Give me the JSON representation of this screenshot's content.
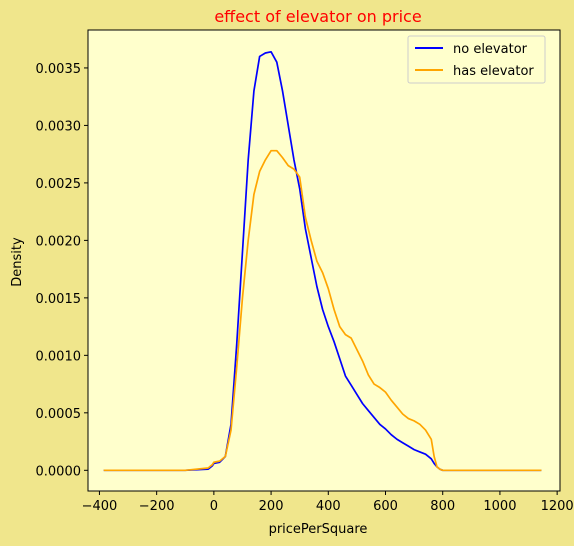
{
  "colors": {
    "figure_bg": "#f0e68c",
    "axes_bg": "#ffffcc",
    "title": "#ff0000",
    "series_no_elevator": "#0000ff",
    "series_has_elevator": "#ffa500"
  },
  "chart_data": {
    "type": "line",
    "title": "effect of elevator on price",
    "xlabel": "pricePerSquare",
    "ylabel": "Density",
    "xlim": [
      -440,
      1210
    ],
    "ylim": [
      -0.00018,
      0.00383
    ],
    "x_ticks": [
      -400,
      -200,
      0,
      200,
      400,
      600,
      800,
      1000,
      1200
    ],
    "x_tick_labels": [
      "−400",
      "−200",
      "0",
      "200",
      "400",
      "600",
      "800",
      "1000",
      "1200"
    ],
    "y_ticks": [
      0.0,
      0.0005,
      0.001,
      0.0015,
      0.002,
      0.0025,
      0.003,
      0.0035
    ],
    "y_tick_labels": [
      "0.0000",
      "0.0005",
      "0.0010",
      "0.0015",
      "0.0020",
      "0.0025",
      "0.0030",
      "0.0035"
    ],
    "grid": false,
    "legend_position": "top-right",
    "series": [
      {
        "name": "no elevator",
        "color": "#0000ff",
        "x": [
          -385,
          -100,
          -20,
          -5,
          0,
          20,
          40,
          60,
          80,
          100,
          120,
          140,
          160,
          180,
          200,
          220,
          240,
          260,
          280,
          300,
          320,
          340,
          360,
          380,
          400,
          420,
          440,
          460,
          480,
          500,
          520,
          540,
          560,
          580,
          600,
          620,
          640,
          660,
          680,
          700,
          720,
          740,
          760,
          770,
          780,
          790,
          800,
          1000,
          1145
        ],
        "y": [
          0.0,
          0.0,
          1e-05,
          4e-05,
          6e-05,
          7e-05,
          0.00012,
          0.0004,
          0.0011,
          0.0019,
          0.0027,
          0.0033,
          0.0036,
          0.00363,
          0.00364,
          0.00355,
          0.0033,
          0.003,
          0.0027,
          0.00245,
          0.0021,
          0.00185,
          0.0016,
          0.0014,
          0.00125,
          0.00112,
          0.00097,
          0.00082,
          0.00074,
          0.00066,
          0.00058,
          0.00052,
          0.00046,
          0.0004,
          0.00036,
          0.00031,
          0.00027,
          0.00024,
          0.00021,
          0.00018,
          0.00016,
          0.00014,
          0.0001,
          6e-05,
          3e-05,
          1e-05,
          0.0,
          0.0,
          0.0
        ]
      },
      {
        "name": "has elevator",
        "color": "#ffa500",
        "x": [
          -385,
          -100,
          -20,
          -5,
          0,
          20,
          40,
          60,
          80,
          100,
          120,
          140,
          160,
          180,
          200,
          220,
          240,
          260,
          280,
          300,
          320,
          340,
          360,
          380,
          400,
          420,
          440,
          460,
          480,
          500,
          520,
          540,
          560,
          580,
          600,
          620,
          640,
          660,
          680,
          700,
          720,
          740,
          760,
          770,
          780,
          790,
          800,
          1000,
          1145
        ],
        "y": [
          0.0,
          0.0,
          2e-05,
          5e-05,
          7e-05,
          8e-05,
          0.00012,
          0.00035,
          0.0009,
          0.0015,
          0.002,
          0.0024,
          0.0026,
          0.0027,
          0.00278,
          0.00278,
          0.00272,
          0.00265,
          0.00262,
          0.00255,
          0.0022,
          0.002,
          0.00182,
          0.00172,
          0.00158,
          0.0014,
          0.00125,
          0.00118,
          0.00115,
          0.00105,
          0.00095,
          0.00083,
          0.00075,
          0.00072,
          0.00068,
          0.00061,
          0.00055,
          0.00049,
          0.00045,
          0.00043,
          0.0004,
          0.00035,
          0.00027,
          0.00012,
          3e-05,
          1e-05,
          0.0,
          0.0,
          0.0
        ]
      }
    ]
  }
}
